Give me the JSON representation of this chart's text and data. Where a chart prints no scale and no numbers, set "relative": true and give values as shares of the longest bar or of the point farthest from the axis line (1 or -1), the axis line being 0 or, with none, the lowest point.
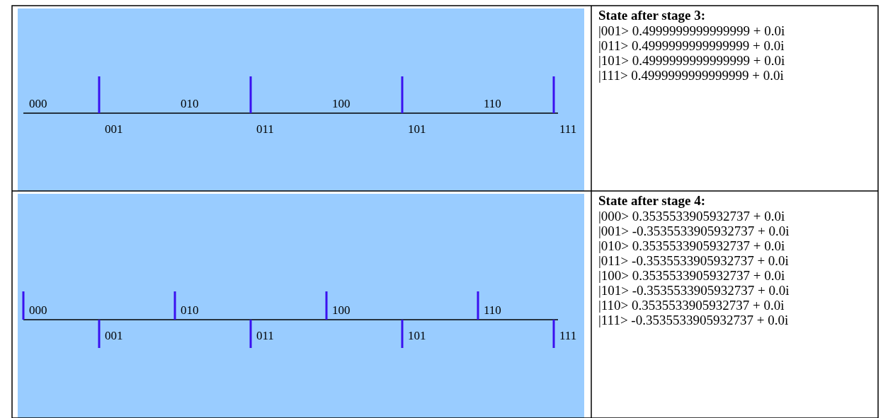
{
  "chart_data": [
    {
      "type": "bar",
      "relative": true,
      "categories": [
        "000",
        "001",
        "010",
        "011",
        "100",
        "101",
        "110",
        "111"
      ],
      "values": [
        0,
        1,
        0,
        1,
        0,
        1,
        0,
        1
      ],
      "color": "#3a10f0"
    },
    {
      "type": "other",
      "title": "State after stage 3:",
      "annotations": [
        "|001> 0.4999999999999999 + 0.0i",
        "|011> 0.4999999999999999 + 0.0i",
        "|101> 0.4999999999999999 + 0.0i",
        "|111> 0.4999999999999999 + 0.0i"
      ]
    },
    {
      "type": "bar",
      "relative": true,
      "categories": [
        "000",
        "001",
        "010",
        "011",
        "100",
        "101",
        "110",
        "111"
      ],
      "values": [
        1,
        -1,
        1,
        -1,
        1,
        -1,
        1,
        -1
      ],
      "color": "#3a10f0"
    },
    {
      "type": "other",
      "title": "State after stage 4:",
      "annotations": [
        "|000> 0.3535533905932737 + 0.0i",
        "|001> -0.3535533905932737 + 0.0i",
        "|010> 0.3535533905932737 + 0.0i",
        "|011> -0.3535533905932737 + 0.0i",
        "|100> 0.3535533905932737 + 0.0i",
        "|101> -0.3535533905932737 + 0.0i",
        "|110> 0.3535533905932737 + 0.0i",
        "|111> -0.3535533905932737 + 0.0i"
      ]
    }
  ]
}
